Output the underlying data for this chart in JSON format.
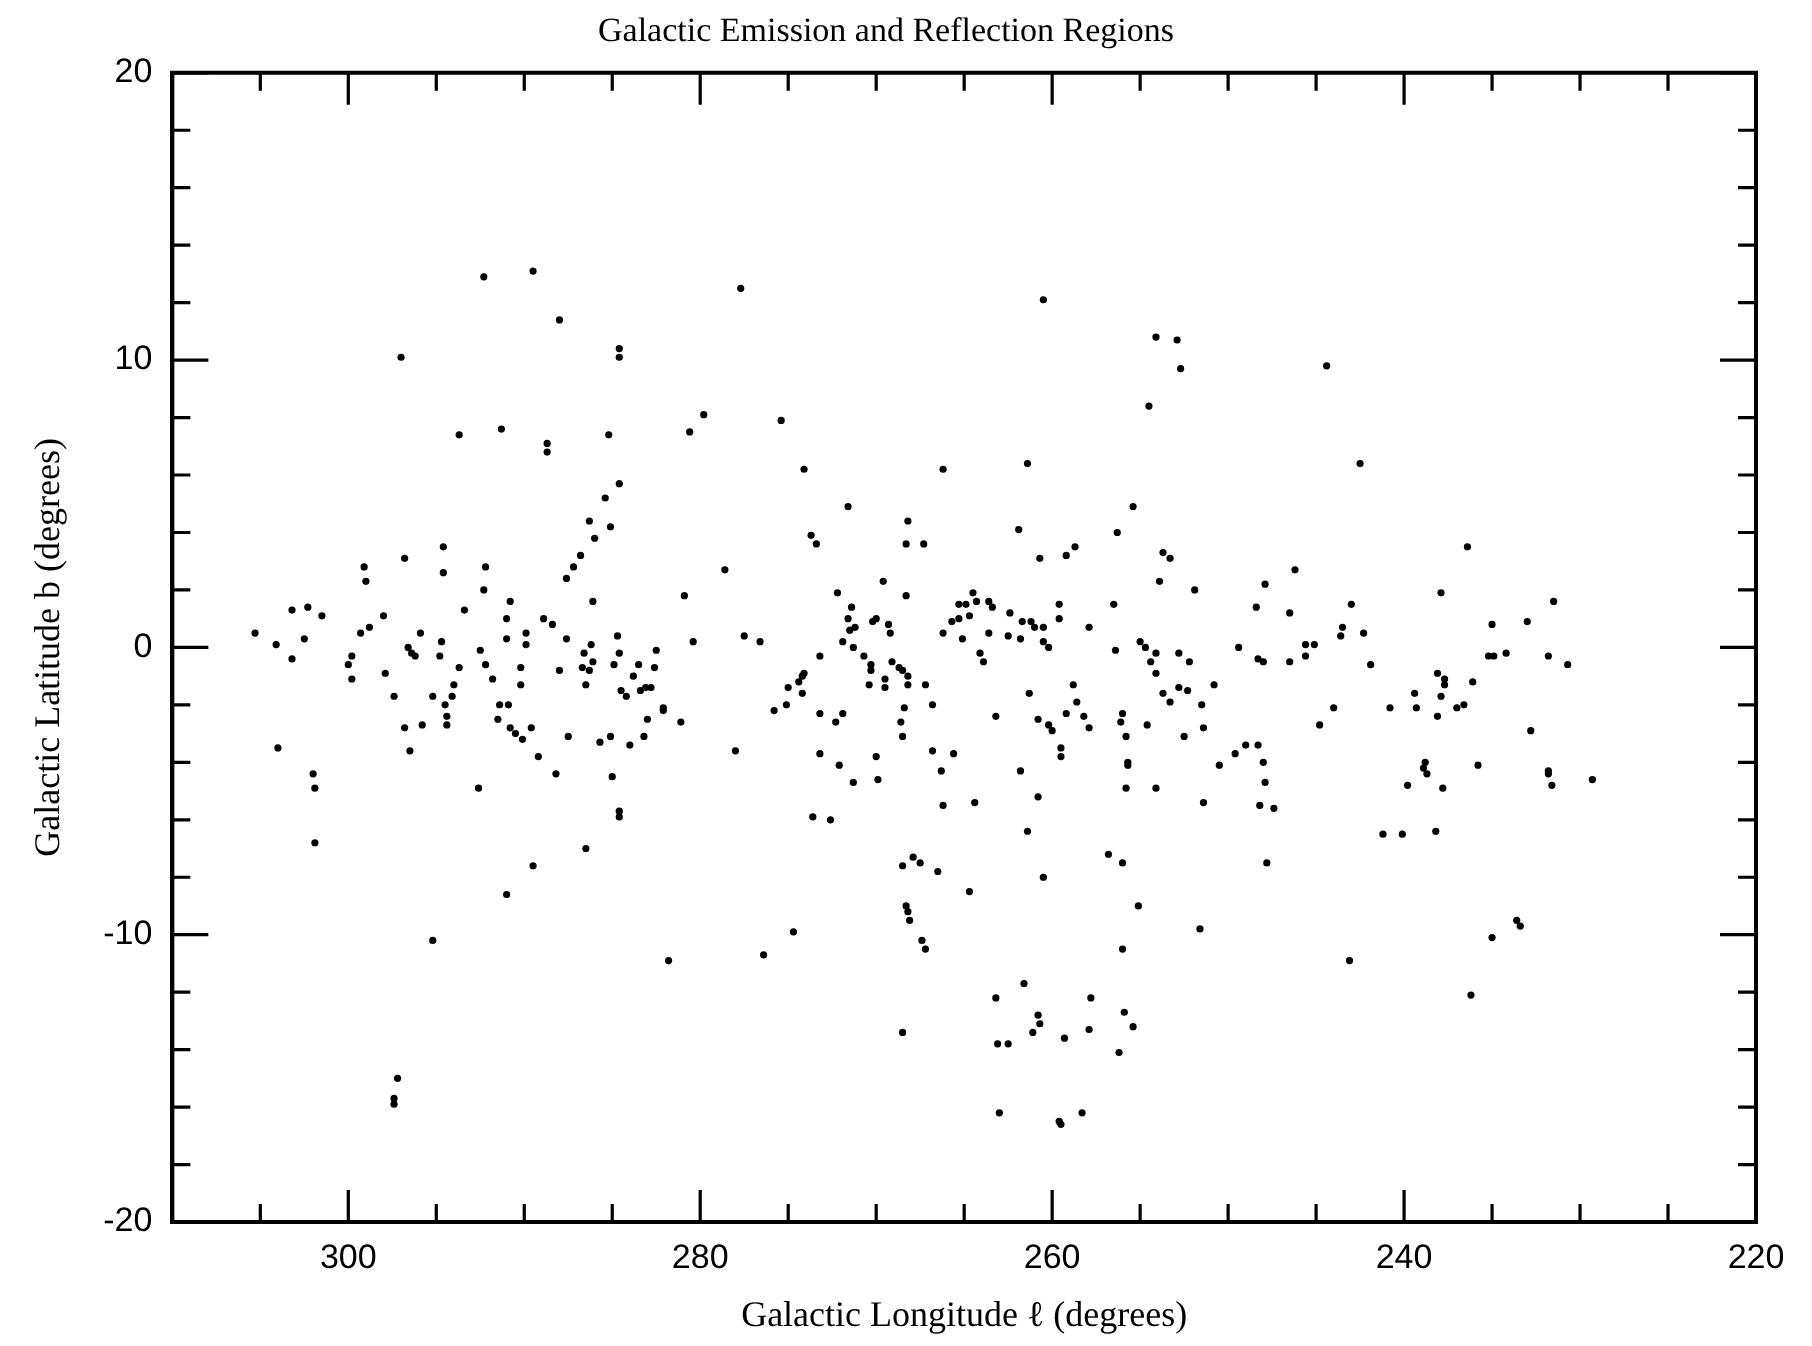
{
  "chart_data": {
    "type": "scatter",
    "title": "Galactic Emission and Reflection Regions",
    "xlabel": "Galactic Longitude ℓ (degrees)",
    "ylabel": "Galactic Latitude b (degrees)",
    "xlim": [
      310,
      220
    ],
    "ylim": [
      -20,
      20
    ],
    "xticks": [
      {
        "value": 305,
        "label": null
      },
      300,
      {
        "value": 295,
        "label": null
      },
      {
        "value": 290,
        "label": null
      },
      {
        "value": 285,
        "label": null
      },
      280,
      {
        "value": 275,
        "label": null
      },
      {
        "value": 270,
        "label": null
      },
      {
        "value": 265,
        "label": null
      },
      260,
      {
        "value": 255,
        "label": null
      },
      {
        "value": 250,
        "label": null
      },
      {
        "value": 245,
        "label": null
      },
      240,
      {
        "value": 235,
        "label": null
      },
      {
        "value": 230,
        "label": null
      },
      {
        "value": 225,
        "label": null
      },
      220
    ],
    "yticks": [
      -20,
      {
        "value": -18,
        "label": null
      },
      {
        "value": -16,
        "label": null
      },
      {
        "value": -14,
        "label": null
      },
      {
        "value": -12,
        "label": null
      },
      -10,
      {
        "value": -8,
        "label": null
      },
      {
        "value": -6,
        "label": null
      },
      {
        "value": -4,
        "label": null
      },
      {
        "value": -2,
        "label": null
      },
      0,
      {
        "value": 2,
        "label": null
      },
      {
        "value": 4,
        "label": null
      },
      {
        "value": 6,
        "label": null
      },
      {
        "value": 8,
        "label": null
      },
      10,
      {
        "value": 12,
        "label": null
      },
      {
        "value": 14,
        "label": null
      },
      {
        "value": 16,
        "label": null
      },
      {
        "value": 18,
        "label": null
      },
      20
    ],
    "grid": false,
    "legend": false,
    "marker": "circle",
    "series": [
      {
        "color": "#000000",
        "x": [
          292.3,
          289.5,
          288.0,
          284.6,
          284.6,
          297.0,
          293.7,
          291.3,
          288.7,
          288.7,
          285.2,
          280.6,
          279.8,
          284.6,
          285.4,
          286.3,
          285.1,
          286.0,
          286.8,
          287.2,
          287.6,
          286.1,
          280.9,
          280.4,
          296.8,
          294.6,
          299.1,
          299.0,
          294.6,
          292.2,
          292.3,
          290.8,
          303.2,
          302.3,
          301.5,
          305.3,
          304.1,
          302.5,
          303.2,
          299.3,
          298.8,
          298.0,
          295.9,
          296.6,
          296.2,
          294.7,
          294.8,
          293.4,
          291.0,
          291.0,
          289.9,
          289.9,
          288.9,
          288.4,
          287.6,
          286.2,
          286.6,
          284.7,
          284.6,
          282.5,
          292.5,
          299.8,
          300.0,
          297.9,
          293.7,
          292.2,
          290.2,
          288.0,
          286.7,
          284.9,
          283.5,
          282.6,
          299.8,
          297.4,
          296.8,
          296.5,
          295.8,
          296.4,
          295.2,
          294.5,
          294.4,
          294.4,
          294.1,
          294.0,
          291.8,
          291.4,
          290.9,
          291.5,
          290.8,
          290.5,
          290.1,
          289.6,
          290.2,
          289.2,
          288.2,
          287.5,
          286.5,
          286.3,
          286.1,
          285.7,
          285.1,
          285.0,
          284.6,
          284.6,
          284.5,
          284.2,
          284.0,
          283.8,
          283.4,
          283.1,
          282.8,
          283.0,
          283.2,
          282.1,
          282.1,
          281.1,
          304.0,
          302.0,
          301.9,
          301.9,
          292.6,
          286.5,
          289.5,
          291.0,
          295.2,
          281.8,
          297.2,
          297.4,
          297.4,
          277.7,
          260.5,
          254.1,
          252.9,
          252.7,
          254.5,
          275.4,
          274.1,
          266.2,
          261.4,
          271.6,
          255.4,
          273.7,
          273.4,
          268.2,
          268.3,
          267.3,
          261.9,
          256.3,
          260.7,
          259.2,
          258.7,
          253.7,
          253.3,
          253.9,
          251.9,
          278.6,
          277.5,
          276.6,
          272.2,
          271.4,
          269.6,
          268.3,
          271.6,
          271.2,
          271.5,
          270.2,
          270.0,
          269.3,
          269.2,
          271.9,
          271.3,
          273.2,
          270.7,
          270.3,
          269.1,
          268.7,
          268.5,
          274.1,
          264.5,
          265.3,
          264.9,
          264.3,
          263.6,
          263.4,
          262.4,
          265.7,
          265.3,
          264.7,
          266.2,
          265.1,
          263.6,
          261.7,
          261.2,
          261.0,
          260.5,
          259.6,
          259.6,
          262.5,
          261.8,
          260.5,
          260.2,
          257.9,
          256.5,
          264.1,
          263.9,
          256.4,
          255.0,
          254.7,
          254.1,
          254.4,
          254.1,
          252.8,
          252.2,
          249.4,
          270.3,
          270.4,
          269.5,
          269.5,
          268.2,
          268.2,
          267.2,
          274.2,
          274.4,
          275.0,
          274.2,
          275.1,
          275.8,
          273.2,
          272.3,
          271.9,
          268.4,
          268.6,
          268.5,
          266.8,
          278.0,
          273.2,
          272.1,
          271.3,
          270.0,
          269.9,
          266.8,
          265.6,
          266.3,
          266.2,
          264.4,
          273.6,
          272.6,
          261.3,
          263.2,
          260.8,
          260.2,
          260.0,
          259.5,
          259.5,
          258.8,
          258.6,
          259.2,
          258.2,
          257.9,
          261.8,
          260.8,
          261.4,
          260.5,
          253.7,
          253.3,
          252.8,
          252.3,
          250.8,
          251.5,
          251.4,
          252.5,
          250.5,
          249.6,
          254.6,
          256.1,
          256.0,
          255.8,
          255.7,
          255.7,
          255.8,
          254.1,
          251.4,
          256.8,
          256.0,
          255.1,
          256.0,
          251.6,
          268.5,
          267.9,
          267.5,
          266.5,
          264.7,
          268.3,
          268.2,
          268.1,
          267.4,
          267.2,
          274.7,
          276.4,
          268.5,
          263.2,
          261.6,
          260.8,
          260.7,
          261.1,
          263.1,
          262.5,
          259.3,
          257.8,
          257.9,
          255.9,
          255.4,
          256.2,
          263.0,
          259.6,
          259.5,
          258.3,
          244.4,
          242.5,
          236.4,
          246.2,
          247.9,
          248.4,
          246.5,
          243.0,
          237.9,
          231.5,
          235.0,
          233.0,
          243.5,
          243.6,
          242.3,
          248.3,
          248.0,
          246.5,
          245.6,
          245.1,
          245.6,
          241.9,
          235.2,
          234.9,
          234.2,
          231.8,
          230.7,
          238.1,
          237.7,
          237.7,
          239.4,
          239.3,
          237.9,
          238.1,
          237.0,
          236.6,
          236.1,
          240.8,
          244.0,
          244.8,
          249.0,
          248.3,
          248.0,
          247.9,
          248.2,
          247.4,
          247.8,
          238.8,
          238.9,
          238.7,
          237.8,
          239.8,
          235.8,
          232.8,
          231.8,
          231.8,
          231.6,
          229.3,
          241.2,
          240.1,
          238.2,
          233.6,
          233.4,
          235.0,
          243.1,
          236.2
        ],
        "values": [
          12.9,
          13.1,
          11.4,
          10.4,
          10.1,
          10.1,
          7.4,
          7.6,
          7.1,
          6.8,
          7.4,
          7.5,
          8.1,
          5.7,
          5.2,
          4.4,
          4.2,
          3.8,
          3.2,
          2.8,
          2.4,
          1.6,
          1.8,
          0.2,
          3.1,
          3.5,
          2.8,
          2.3,
          2.6,
          2.8,
          2.0,
          1.6,
          1.3,
          1.4,
          1.1,
          0.5,
          0.1,
          0.3,
          -0.4,
          0.5,
          0.7,
          1.1,
          0.5,
          0,
          -0.3,
          0.2,
          -0.3,
          1.3,
          1.0,
          0.3,
          0.5,
          0.1,
          1.0,
          0.8,
          0.3,
          0.1,
          -0.2,
          0.4,
          -0.2,
          -0.1,
          -0.1,
          -0.3,
          -0.6,
          -0.9,
          -0.7,
          -0.6,
          -0.7,
          -0.8,
          -0.7,
          -0.6,
          -0.6,
          -0.7,
          -1.1,
          -1.7,
          -2.8,
          -3.6,
          -2.7,
          -0.2,
          -1.7,
          -2.0,
          -2.4,
          -2.7,
          -1.7,
          -1.3,
          -1.1,
          -2.0,
          -2.0,
          -2.5,
          -2.8,
          -3.0,
          -3.2,
          -2.8,
          -1.3,
          -3.8,
          -4.4,
          -3.1,
          -1.3,
          -0.8,
          -0.5,
          -3.3,
          -3.1,
          -4.5,
          -5.7,
          -5.9,
          -1.5,
          -1.7,
          -3.4,
          -1.0,
          -1.5,
          -1.4,
          -1.4,
          -2.5,
          -3.1,
          -2.1,
          -2.2,
          -2.6,
          -3.5,
          -4.4,
          -4.9,
          -6.8,
          -4.9,
          -7.0,
          -7.6,
          -8.6,
          -10.2,
          -10.9,
          -15.0,
          -15.7,
          -15.9,
          12.5,
          12.1,
          10.8,
          10.7,
          9.7,
          8.4,
          7.9,
          6.2,
          6.2,
          6.4,
          4.9,
          4.9,
          3.9,
          3.6,
          4.4,
          3.6,
          3.6,
          4.1,
          4.0,
          3.1,
          3.2,
          3.5,
          3.3,
          3.1,
          2.3,
          2.0,
          2.7,
          0.4,
          0.2,
          1.9,
          1.4,
          2.3,
          1.8,
          1.0,
          0.7,
          0.6,
          0.9,
          1.0,
          0.8,
          0.5,
          0.2,
          0,
          -0.3,
          -0.3,
          -0.6,
          -0.5,
          -0.7,
          -0.8,
          -0.9,
          1.9,
          1.5,
          1.5,
          1.6,
          1.6,
          1.4,
          1.2,
          0.9,
          1.0,
          1.1,
          0.5,
          0.3,
          0.5,
          0.9,
          0.9,
          0.7,
          0.7,
          1.5,
          1.0,
          0.4,
          0.3,
          0.2,
          0,
          0.7,
          1.5,
          -0.2,
          -0.5,
          -0.1,
          0.2,
          0,
          -0.2,
          -0.5,
          -0.9,
          -0.2,
          -0.5,
          0,
          -0.8,
          -1.3,
          -1.1,
          -1.4,
          -1.0,
          -1.3,
          -1.3,
          -1.0,
          -1.2,
          -1.4,
          -1.6,
          -2.0,
          -2.2,
          -2.3,
          -2.6,
          -2.3,
          -2.1,
          -2.6,
          -3.1,
          -2.0,
          -3.6,
          -3.7,
          -4.1,
          -4.7,
          -3.8,
          -4.6,
          -3.6,
          -3.7,
          -4.3,
          -5.5,
          -5.4,
          -5.9,
          -6.0,
          -1.6,
          -2.4,
          -2.5,
          -2.7,
          -2.9,
          -3.5,
          -3.8,
          -1.3,
          -1.9,
          -2.3,
          -2.4,
          -2.8,
          -4.3,
          -5.2,
          -6.4,
          -8.0,
          -1.6,
          -1.9,
          -1.4,
          -1.5,
          -1.3,
          -2.0,
          -2.8,
          -3.1,
          -4.1,
          -3.7,
          -2.7,
          -2.6,
          -2.3,
          -3.1,
          -4.0,
          -4.1,
          -4.9,
          -4.9,
          -5.4,
          -7.2,
          -7.5,
          -9.0,
          -10.5,
          -9.8,
          -7.6,
          -7.3,
          -7.5,
          -7.8,
          -8.5,
          -9.0,
          -9.2,
          -9.5,
          -10.2,
          -10.5,
          -9.9,
          -10.7,
          -13.4,
          -12.2,
          -11.7,
          -12.8,
          -13.1,
          -13.4,
          -13.8,
          -13.8,
          -13.6,
          -12.2,
          -13.3,
          -12.7,
          -13.2,
          -14.1,
          -16.2,
          -16.5,
          -16.6,
          -16.2,
          9.8,
          6.4,
          3.5,
          2.7,
          2.2,
          1.4,
          1.2,
          1.5,
          1.9,
          1.6,
          0.8,
          0.9,
          0.7,
          0.4,
          0.5,
          -0.4,
          -0.5,
          -0.5,
          0.1,
          0.1,
          -0.3,
          -0.6,
          -0.3,
          -0.3,
          -0.2,
          -0.3,
          -0.6,
          -0.9,
          -1.1,
          -1.3,
          -1.6,
          -2.1,
          -1.7,
          -2.4,
          -2.1,
          -2.0,
          -1.2,
          -2.1,
          -2.1,
          -2.7,
          -3.4,
          -3.4,
          -4.0,
          -4.7,
          -5.5,
          -5.6,
          -7.5,
          -4.0,
          -4.2,
          -4.4,
          -4.9,
          -4.8,
          -4.1,
          -2.9,
          -4.3,
          -4.4,
          -4.8,
          -4.6,
          -6.5,
          -6.5,
          -6.4,
          -9.5,
          -9.7,
          -10.1,
          -10.9,
          -12.1
        ]
      }
    ]
  }
}
